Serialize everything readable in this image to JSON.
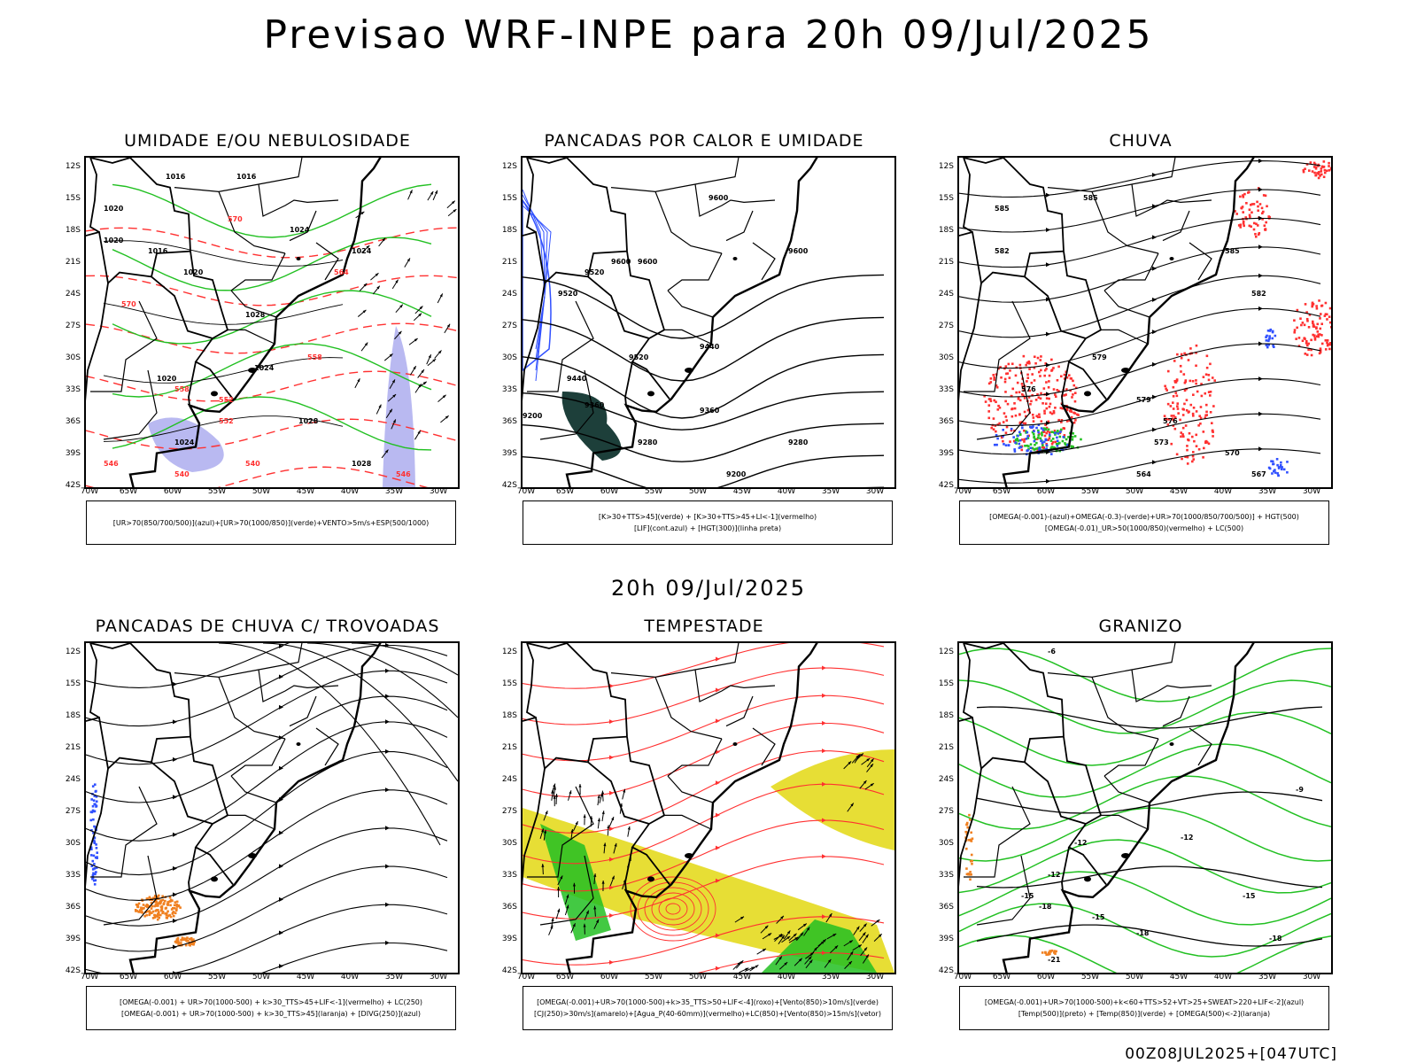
{
  "title": "Previsao WRF-INPE  para 20h 09/Jul/2025",
  "mid_title": "20h 09/Jul/2025",
  "footer": "00Z08JUL2025+[047UTC]",
  "axes": {
    "lat_ticks": [
      "12S",
      "15S",
      "18S",
      "21S",
      "24S",
      "27S",
      "30S",
      "33S",
      "36S",
      "39S",
      "42S"
    ],
    "lon_ticks": [
      "70W",
      "65W",
      "60W",
      "55W",
      "50W",
      "45W",
      "40W",
      "35W",
      "30W"
    ]
  },
  "colors": {
    "green": "#22c022",
    "red": "#ff3030",
    "blue": "#3050ff",
    "lavender": "#a8a8ee",
    "orange": "#f08020",
    "yellow": "#e6dc2a",
    "darkteal": "#1d3f3a",
    "black": "#000000"
  },
  "panels": [
    {
      "id": "umidade",
      "title": "UMIDADE E/OU NEBULOSIDADE",
      "legend": [
        "[UR>70(850/700/500)](azul)+[UR>70(1000/850)](verde)+VENTO>5m/s+ESP(500/1000)"
      ],
      "labels": [
        "1016",
        "1016",
        "1020",
        "1020",
        "1016",
        "1020",
        "1024",
        "1024",
        "1028",
        "1020",
        "1024",
        "1028",
        "1024",
        "1028",
        "570",
        "564",
        "558",
        "552",
        "546",
        "540",
        "540",
        "546",
        "570",
        "558",
        "552"
      ]
    },
    {
      "id": "pancadas-calor",
      "title": "PANCADAS POR CALOR E UMIDADE",
      "legend": [
        "[K>30+TTS>45](verde) + [K>30+TTS>45+LI<-1](vermelho)",
        "[LIF](cont.azul) + [HGT(300)](linha preta)"
      ],
      "labels": [
        "9600",
        "9600",
        "9600",
        "9520",
        "9600",
        "9520",
        "9520",
        "9440",
        "9440",
        "9360",
        "9360",
        "9280",
        "9280",
        "9200",
        "9200"
      ]
    },
    {
      "id": "chuva",
      "title": "CHUVA",
      "legend": [
        "[OMEGA(-0.001)-(azul)+OMEGA(-0.3)-(verde)+UR>70(1000/850/700/500)] + HGT(500)",
        "[OMEGA(-0.01)_UR>50(1000/850)(vermelho) + LC(500)"
      ],
      "labels": [
        "585",
        "585",
        "585",
        "582",
        "582",
        "579",
        "576",
        "579",
        "576",
        "573",
        "570",
        "567",
        "564"
      ]
    },
    {
      "id": "trovoadas",
      "title": "PANCADAS DE CHUVA C/ TROVOADAS",
      "legend": [
        "[OMEGA(-0.001) + UR>70(1000-500) + k>30_TTS>45+LIF<-1](vermelho) + LC(250)",
        "[OMEGA(-0.001) + UR>70(1000-500) + k>30_TTS>45](laranja) + [DIVG(250)](azul)"
      ],
      "labels": []
    },
    {
      "id": "tempestade",
      "title": "TEMPESTADE",
      "legend": [
        "[OMEGA(-0.001)+UR>70(1000-500)+k>35_TTS>50+LIF<-4](roxo)+[Vento(850)>10m/s](verde)",
        "[CJ(250)>30m/s](amarelo)+[Agua_P(40-60mm)](vermelho)+LC(850)+[Vento(850)>15m/s](vetor)"
      ],
      "labels": []
    },
    {
      "id": "granizo",
      "title": "GRANIZO",
      "legend": [
        "[OMEGA(-0.001)+UR>70(1000-500)+k<60+TTS>52+VT>25+SWEAT>220+LIF<-2](azul)",
        "[Temp(500)](preto) + [Temp(850)](verde) + [OMEGA(500)<-2](laranja)"
      ],
      "labels": [
        "-6",
        "-9",
        "-12",
        "-12",
        "-12",
        "-15",
        "-15",
        "-15",
        "-18",
        "-18",
        "-18",
        "-21"
      ]
    }
  ]
}
